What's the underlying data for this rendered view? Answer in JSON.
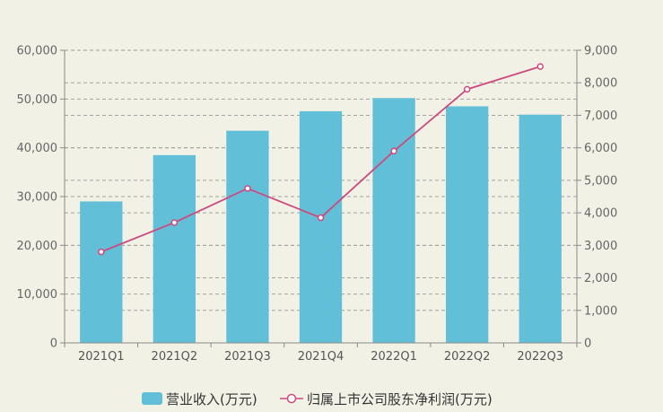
{
  "chart_data": {
    "type": "bar",
    "categories": [
      "2021Q1",
      "2021Q2",
      "2021Q3",
      "2021Q4",
      "2022Q1",
      "2022Q2",
      "2022Q3"
    ],
    "series": [
      {
        "name": "营业收入(万元)",
        "type": "bar",
        "axis": "left",
        "color": "#62bfd8",
        "values": [
          29000,
          38500,
          43500,
          47500,
          50200,
          48500,
          46800
        ]
      },
      {
        "name": "归属上市公司股东净利润(万元)",
        "type": "line",
        "axis": "right",
        "color": "#cc4b7f",
        "values": [
          2800,
          3700,
          4750,
          3850,
          5900,
          7800,
          8500
        ]
      }
    ],
    "y_left": {
      "min": 0,
      "max": 60000,
      "ticks": [
        "0",
        "10,000",
        "20,000",
        "30,000",
        "40,000",
        "50,000",
        "60,000"
      ]
    },
    "y_right": {
      "min": 0,
      "max": 9000,
      "ticks": [
        "0",
        "1,000",
        "2,000",
        "3,000",
        "4,000",
        "5,000",
        "6,000",
        "7,000",
        "8,000",
        "9,000"
      ]
    },
    "grid": true,
    "legend": "bottom-center"
  }
}
